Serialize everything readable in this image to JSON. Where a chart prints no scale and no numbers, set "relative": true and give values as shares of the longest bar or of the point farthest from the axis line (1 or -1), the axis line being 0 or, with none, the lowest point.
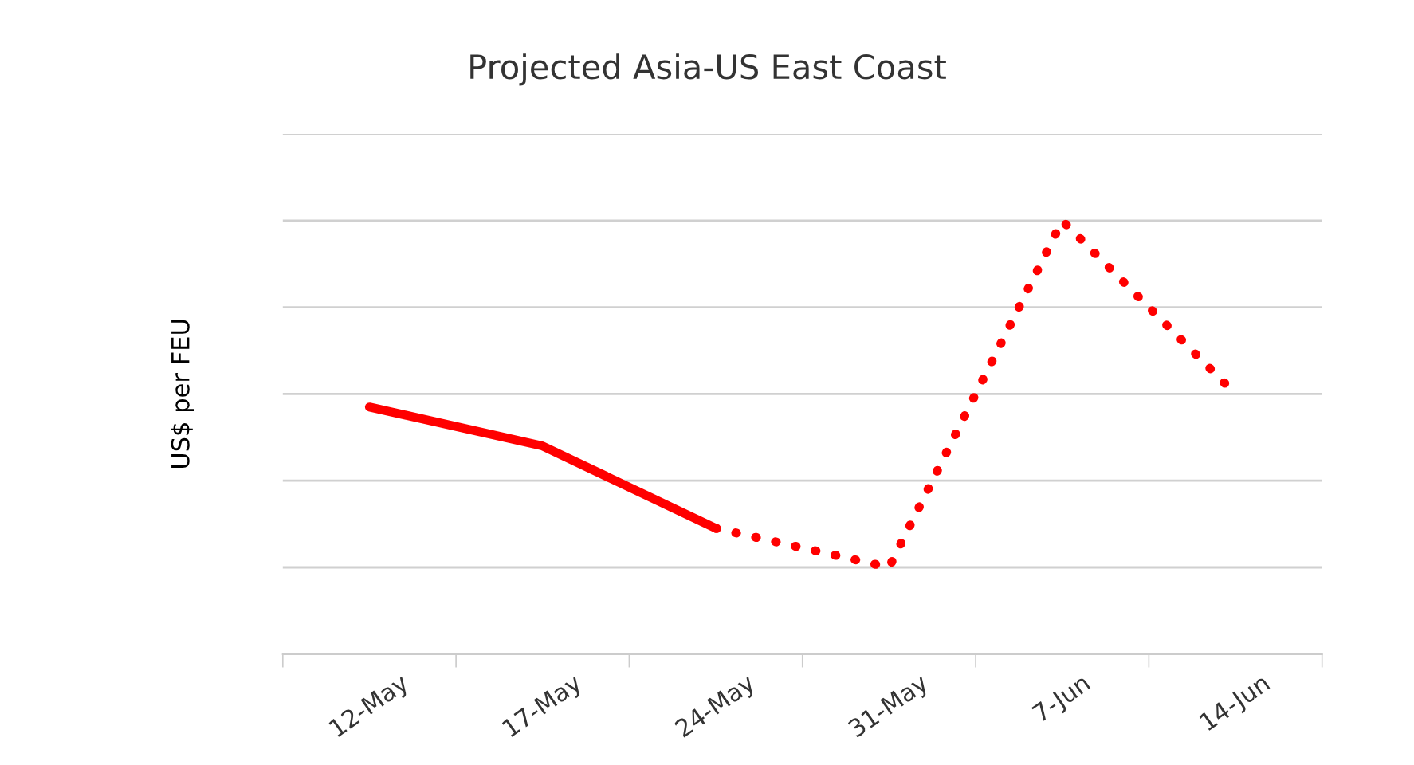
{
  "chart_data": {
    "type": "line",
    "title": "Projected Asia-US East Coast",
    "ylabel": "US$ per FEU",
    "relative": true,
    "grid": "y",
    "legend": false,
    "categories": [
      "12-May",
      "17-May",
      "24-May",
      "31-May",
      "7-Jun",
      "14-Jun"
    ],
    "series": [
      {
        "color": "#ff0000",
        "line_style": "solid",
        "values": [
          0.57,
          0.48,
          0.29,
          null,
          null,
          null
        ]
      },
      {
        "color": "#ff0000",
        "line_style": "dotted",
        "values": [
          null,
          null,
          0.29,
          0.2,
          1,
          0.6
        ]
      }
    ]
  }
}
